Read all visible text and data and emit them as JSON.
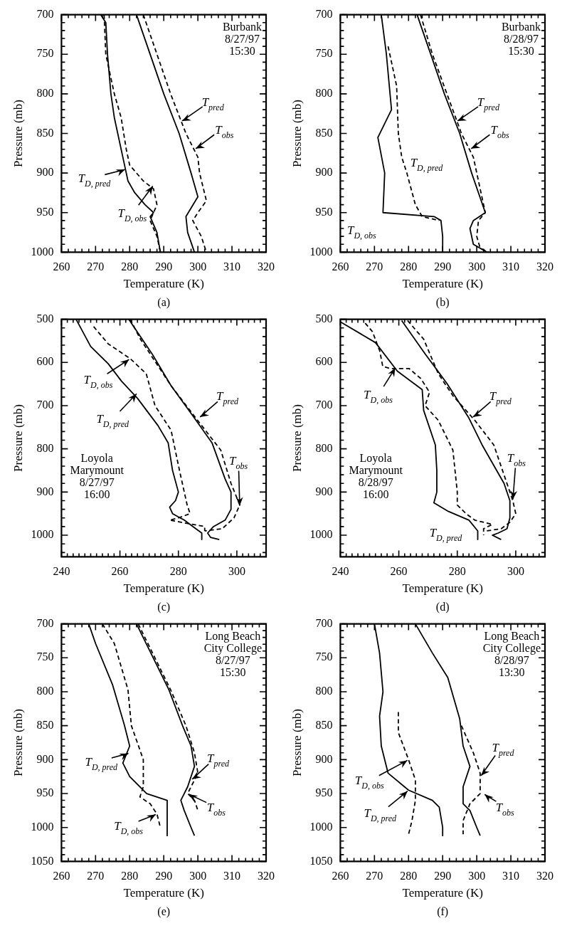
{
  "chart_data": [
    {
      "type": "line",
      "title": "Burbank\n8/27/97\n15:30",
      "xlabel": "Temperature (K)",
      "ylabel": "Pressure (mb)",
      "marker": "none",
      "xlim": [
        260,
        320
      ],
      "ylim": [
        1000,
        700
      ],
      "xticks": [
        260,
        {
          "value": 262,
          "label": null
        },
        {
          "value": 264,
          "label": null
        },
        {
          "value": 266,
          "label": null
        },
        {
          "value": 268,
          "label": null
        },
        270,
        {
          "value": 272,
          "label": null
        },
        {
          "value": 274,
          "label": null
        },
        {
          "value": 276,
          "label": null
        },
        {
          "value": 278,
          "label": null
        },
        280,
        {
          "value": 282,
          "label": null
        },
        {
          "value": 284,
          "label": null
        },
        {
          "value": 286,
          "label": null
        },
        {
          "value": 288,
          "label": null
        },
        290,
        {
          "value": 292,
          "label": null
        },
        {
          "value": 294,
          "label": null
        },
        {
          "value": 296,
          "label": null
        },
        {
          "value": 298,
          "label": null
        },
        300,
        {
          "value": 302,
          "label": null
        },
        {
          "value": 304,
          "label": null
        },
        {
          "value": 306,
          "label": null
        },
        {
          "value": 308,
          "label": null
        },
        310,
        {
          "value": 312,
          "label": null
        },
        {
          "value": 314,
          "label": null
        },
        {
          "value": 316,
          "label": null
        },
        {
          "value": 318,
          "label": null
        },
        320
      ],
      "yticks": [
        700,
        {
          "value": 710,
          "label": null
        },
        {
          "value": 720,
          "label": null
        },
        {
          "value": 730,
          "label": null
        },
        {
          "value": 740,
          "label": null
        },
        750,
        {
          "value": 760,
          "label": null
        },
        {
          "value": 770,
          "label": null
        },
        {
          "value": 780,
          "label": null
        },
        {
          "value": 790,
          "label": null
        },
        800,
        {
          "value": 810,
          "label": null
        },
        {
          "value": 820,
          "label": null
        },
        {
          "value": 830,
          "label": null
        },
        {
          "value": 840,
          "label": null
        },
        850,
        {
          "value": 860,
          "label": null
        },
        {
          "value": 870,
          "label": null
        },
        {
          "value": 880,
          "label": null
        },
        {
          "value": 890,
          "label": null
        },
        900,
        {
          "value": 910,
          "label": null
        },
        {
          "value": 920,
          "label": null
        },
        {
          "value": 930,
          "label": null
        },
        {
          "value": 940,
          "label": null
        },
        950,
        {
          "value": 960,
          "label": null
        },
        {
          "value": 970,
          "label": null
        },
        {
          "value": 980,
          "label": null
        },
        {
          "value": 990,
          "label": null
        },
        1000
      ],
      "series": [
        {
          "color": "#000000",
          "line_style": "solid",
          "x": [
            282,
            290,
            294.5,
            298,
            300,
            296.5,
            297,
            299
          ],
          "values": [
            700,
            800,
            850,
            900,
            930,
            955,
            975,
            1000
          ]
        },
        {
          "color": "#000000",
          "line_style": "dashed",
          "x": [
            284,
            292,
            296.5,
            300,
            300.5,
            302.5,
            300,
            298.5,
            301,
            302.5
          ],
          "values": [
            700,
            800,
            850,
            880,
            900,
            935,
            950,
            960,
            980,
            1000
          ]
        },
        {
          "color": "#000000",
          "line_style": "solid",
          "x": [
            271.5,
            273,
            273.5,
            274.5,
            275.5,
            278,
            279,
            279.5,
            281.5,
            284.5,
            287,
            286,
            288,
            289
          ],
          "values": [
            700,
            710,
            750,
            800,
            830,
            880,
            900,
            910,
            925,
            940,
            950,
            955,
            975,
            1000
          ]
        },
        {
          "color": "#000000",
          "line_style": "dashed",
          "x": [
            272.5,
            273,
            274,
            275.5,
            277.5,
            279,
            280,
            284,
            287,
            288,
            287,
            286,
            288,
            289
          ],
          "values": [
            700,
            750,
            770,
            800,
            830,
            870,
            890,
            910,
            920,
            940,
            950,
            960,
            980,
            1000
          ]
        }
      ],
      "annotations": [
        {
          "text": "T$_{pred}$",
          "x": 295,
          "y": 835
        },
        {
          "text": "T$_{obs}$",
          "x": 299,
          "y": 870
        },
        {
          "text": "T$_{D, pred}$",
          "x": 279,
          "y": 895
        },
        {
          "text": "T$_{D, obs}$",
          "x": 287,
          "y": 915
        },
        "(a)"
      ]
    },
    {
      "type": "line",
      "title": "Burbank\n8/28/97\n15:30",
      "xlabel": "Temperature (K)",
      "ylabel": "Pressure (mb)",
      "marker": "none",
      "xlim": [
        260,
        320
      ],
      "ylim": [
        1000,
        700
      ],
      "xticks": [
        260,
        {
          "value": 262,
          "label": null
        },
        {
          "value": 264,
          "label": null
        },
        {
          "value": 266,
          "label": null
        },
        {
          "value": 268,
          "label": null
        },
        270,
        {
          "value": 272,
          "label": null
        },
        {
          "value": 274,
          "label": null
        },
        {
          "value": 276,
          "label": null
        },
        {
          "value": 278,
          "label": null
        },
        280,
        {
          "value": 282,
          "label": null
        },
        {
          "value": 284,
          "label": null
        },
        {
          "value": 286,
          "label": null
        },
        {
          "value": 288,
          "label": null
        },
        290,
        {
          "value": 292,
          "label": null
        },
        {
          "value": 294,
          "label": null
        },
        {
          "value": 296,
          "label": null
        },
        {
          "value": 298,
          "label": null
        },
        300,
        {
          "value": 302,
          "label": null
        },
        {
          "value": 304,
          "label": null
        },
        {
          "value": 306,
          "label": null
        },
        {
          "value": 308,
          "label": null
        },
        310,
        {
          "value": 312,
          "label": null
        },
        {
          "value": 314,
          "label": null
        },
        {
          "value": 316,
          "label": null
        },
        {
          "value": 318,
          "label": null
        },
        320
      ],
      "yticks": [
        700,
        {
          "value": 710,
          "label": null
        },
        {
          "value": 720,
          "label": null
        },
        {
          "value": 730,
          "label": null
        },
        {
          "value": 740,
          "label": null
        },
        750,
        {
          "value": 760,
          "label": null
        },
        {
          "value": 770,
          "label": null
        },
        {
          "value": 780,
          "label": null
        },
        {
          "value": 790,
          "label": null
        },
        800,
        {
          "value": 810,
          "label": null
        },
        {
          "value": 820,
          "label": null
        },
        {
          "value": 830,
          "label": null
        },
        {
          "value": 840,
          "label": null
        },
        850,
        {
          "value": 860,
          "label": null
        },
        {
          "value": 870,
          "label": null
        },
        {
          "value": 880,
          "label": null
        },
        {
          "value": 890,
          "label": null
        },
        900,
        {
          "value": 910,
          "label": null
        },
        {
          "value": 920,
          "label": null
        },
        {
          "value": 930,
          "label": null
        },
        {
          "value": 940,
          "label": null
        },
        950,
        {
          "value": 960,
          "label": null
        },
        {
          "value": 970,
          "label": null
        },
        {
          "value": 980,
          "label": null
        },
        {
          "value": 990,
          "label": null
        },
        1000
      ],
      "series": [
        {
          "color": "#000000",
          "line_style": "solid",
          "x": [
            282.5,
            290.5,
            295,
            298.5,
            302.5,
            299,
            298,
            299,
            303
          ],
          "values": [
            700,
            800,
            850,
            900,
            950,
            960,
            970,
            990,
            1000
          ]
        },
        {
          "color": "#000000",
          "line_style": "dashed",
          "x": [
            283.5,
            287,
            295.5,
            299,
            302.5,
            300.5,
            300,
            301,
            303.5
          ],
          "values": [
            700,
            750,
            850,
            880,
            950,
            960,
            980,
            995,
            1000
          ]
        },
        {
          "color": "#000000",
          "line_style": "solid",
          "x": [
            272,
            273.5,
            275,
            271,
            273,
            272.5,
            287.5,
            289.5,
            290,
            290
          ],
          "values": [
            700,
            750,
            820,
            855,
            900,
            950,
            955,
            960,
            980,
            1000
          ]
        },
        {
          "color": "#000000",
          "line_style": "dashed",
          "x": [
            274,
            276.5,
            277,
            278,
            279.5,
            282,
            284,
            289
          ],
          "values": [
            740,
            790,
            850,
            880,
            900,
            940,
            955,
            960
          ]
        }
      ],
      "annotations": [
        {
          "text": "T$_{pred}$",
          "x": 294,
          "y": 835
        },
        {
          "text": "T$_{obs}$",
          "x": 298,
          "y": 870
        },
        {
          "text": "T$_{D, pred}$",
          "x": 279,
          "y": 885
        },
        {
          "text": "T$_{D, obs}$",
          "x": 272.5,
          "y": 950
        },
        "(b)"
      ]
    },
    {
      "type": "line",
      "title": "Loyola\nMarymount\n8/27/97\n16:00",
      "xlabel": "Temperature (K)",
      "ylabel": "Pressure (mb)",
      "marker": "none",
      "xlim": [
        240,
        310
      ],
      "ylim": [
        1050,
        500
      ],
      "xticks": [
        240,
        {
          "value": 242,
          "label": null
        },
        {
          "value": 244,
          "label": null
        },
        {
          "value": 246,
          "label": null
        },
        {
          "value": 248,
          "label": null
        },
        {
          "value": 250,
          "label": null
        },
        {
          "value": 252,
          "label": null
        },
        {
          "value": 254,
          "label": null
        },
        {
          "value": 256,
          "label": null
        },
        {
          "value": 258,
          "label": null
        },
        260,
        {
          "value": 262,
          "label": null
        },
        {
          "value": 264,
          "label": null
        },
        {
          "value": 266,
          "label": null
        },
        {
          "value": 268,
          "label": null
        },
        {
          "value": 270,
          "label": null
        },
        {
          "value": 272,
          "label": null
        },
        {
          "value": 274,
          "label": null
        },
        {
          "value": 276,
          "label": null
        },
        {
          "value": 278,
          "label": null
        },
        280,
        {
          "value": 282,
          "label": null
        },
        {
          "value": 284,
          "label": null
        },
        {
          "value": 286,
          "label": null
        },
        {
          "value": 288,
          "label": null
        },
        {
          "value": 290,
          "label": null
        },
        {
          "value": 292,
          "label": null
        },
        {
          "value": 294,
          "label": null
        },
        {
          "value": 296,
          "label": null
        },
        {
          "value": 298,
          "label": null
        },
        300,
        {
          "value": 302,
          "label": null
        },
        {
          "value": 304,
          "label": null
        },
        {
          "value": 306,
          "label": null
        },
        {
          "value": 308,
          "label": null
        }
      ],
      "yticks": [
        500,
        {
          "value": 520,
          "label": null
        },
        {
          "value": 540,
          "label": null
        },
        {
          "value": 560,
          "label": null
        },
        {
          "value": 580,
          "label": null
        },
        600,
        {
          "value": 620,
          "label": null
        },
        {
          "value": 640,
          "label": null
        },
        {
          "value": 660,
          "label": null
        },
        {
          "value": 680,
          "label": null
        },
        700,
        {
          "value": 720,
          "label": null
        },
        {
          "value": 740,
          "label": null
        },
        {
          "value": 760,
          "label": null
        },
        {
          "value": 780,
          "label": null
        },
        800,
        {
          "value": 820,
          "label": null
        },
        {
          "value": 840,
          "label": null
        },
        {
          "value": 860,
          "label": null
        },
        {
          "value": 880,
          "label": null
        },
        900,
        {
          "value": 920,
          "label": null
        },
        {
          "value": 940,
          "label": null
        },
        {
          "value": 960,
          "label": null
        },
        {
          "value": 980,
          "label": null
        },
        1000,
        {
          "value": 1020,
          "label": null
        },
        {
          "value": 1040,
          "label": null
        }
      ],
      "series": [
        {
          "color": "#000000",
          "line_style": "solid",
          "x": [
            263,
            271,
            277.5,
            285.5,
            291.5,
            296,
            298,
            298,
            296,
            292,
            290,
            291,
            294
          ],
          "values": [
            500,
            580,
            654,
            729,
            786,
            870,
            900,
            940,
            965,
            980,
            995,
            1005,
            1010
          ]
        },
        {
          "color": "#000000",
          "line_style": "dashed",
          "x": [
            263.5,
            267,
            277.5,
            286,
            294.5,
            298,
            301,
            299,
            295,
            289
          ],
          "values": [
            500,
            546,
            654,
            729,
            803,
            880,
            930,
            960,
            985,
            990
          ]
        },
        {
          "color": "#000000",
          "line_style": "solid",
          "x": [
            245,
            250,
            256,
            260.5,
            266,
            273,
            276.5,
            278,
            280,
            279,
            277,
            278,
            282,
            285,
            288,
            288
          ],
          "values": [
            500,
            563,
            603,
            643,
            683,
            746,
            786,
            850,
            900,
            920,
            935,
            950,
            965,
            980,
            995,
            1010
          ]
        },
        {
          "color": "#000000",
          "line_style": "dashed",
          "x": [
            251,
            256,
            263.5,
            269,
            272,
            277.5,
            280.5,
            283,
            284,
            280,
            277,
            289,
            289
          ],
          "values": [
            517,
            557,
            591,
            626,
            700,
            757,
            854,
            930,
            950,
            960,
            965,
            980,
            990
          ]
        }
      ],
      "annotations": [
        {
          "text": "T$_{D, obs}$",
          "x": 263.5,
          "y": 591
        },
        {
          "text": "T$_{D, pred}$",
          "x": 266,
          "y": 670
        },
        {
          "text": "T$_{pred}$",
          "x": 287,
          "y": 728
        },
        {
          "text": "T$_{obs}$",
          "x": 301,
          "y": 935
        },
        "(c)"
      ]
    },
    {
      "type": "line",
      "title": "Loyola\nMarymount\n8/28/97\n16:00",
      "xlabel": "Temperature (K)",
      "ylabel": "Pressure (mb)",
      "marker": "none",
      "xlim": [
        240,
        310
      ],
      "ylim": [
        1050,
        500
      ],
      "xticks": [
        240,
        {
          "value": 242,
          "label": null
        },
        {
          "value": 244,
          "label": null
        },
        {
          "value": 246,
          "label": null
        },
        {
          "value": 248,
          "label": null
        },
        {
          "value": 250,
          "label": null
        },
        {
          "value": 252,
          "label": null
        },
        {
          "value": 254,
          "label": null
        },
        {
          "value": 256,
          "label": null
        },
        {
          "value": 258,
          "label": null
        },
        260,
        {
          "value": 262,
          "label": null
        },
        {
          "value": 264,
          "label": null
        },
        {
          "value": 266,
          "label": null
        },
        {
          "value": 268,
          "label": null
        },
        {
          "value": 270,
          "label": null
        },
        {
          "value": 272,
          "label": null
        },
        {
          "value": 274,
          "label": null
        },
        {
          "value": 276,
          "label": null
        },
        {
          "value": 278,
          "label": null
        },
        280,
        {
          "value": 282,
          "label": null
        },
        {
          "value": 284,
          "label": null
        },
        {
          "value": 286,
          "label": null
        },
        {
          "value": 288,
          "label": null
        },
        {
          "value": 290,
          "label": null
        },
        {
          "value": 292,
          "label": null
        },
        {
          "value": 294,
          "label": null
        },
        {
          "value": 296,
          "label": null
        },
        {
          "value": 298,
          "label": null
        },
        300,
        {
          "value": 302,
          "label": null
        },
        {
          "value": 304,
          "label": null
        },
        {
          "value": 306,
          "label": null
        },
        {
          "value": 308,
          "label": null
        }
      ],
      "yticks": [
        500,
        {
          "value": 520,
          "label": null
        },
        {
          "value": 540,
          "label": null
        },
        {
          "value": 560,
          "label": null
        },
        {
          "value": 580,
          "label": null
        },
        600,
        {
          "value": 620,
          "label": null
        },
        {
          "value": 640,
          "label": null
        },
        {
          "value": 660,
          "label": null
        },
        {
          "value": 680,
          "label": null
        },
        700,
        {
          "value": 720,
          "label": null
        },
        {
          "value": 740,
          "label": null
        },
        {
          "value": 760,
          "label": null
        },
        {
          "value": 780,
          "label": null
        },
        800,
        {
          "value": 820,
          "label": null
        },
        {
          "value": 840,
          "label": null
        },
        {
          "value": 860,
          "label": null
        },
        {
          "value": 880,
          "label": null
        },
        900,
        {
          "value": 920,
          "label": null
        },
        {
          "value": 940,
          "label": null
        },
        {
          "value": 960,
          "label": null
        },
        {
          "value": 980,
          "label": null
        },
        1000,
        {
          "value": 1020,
          "label": null
        },
        {
          "value": 1040,
          "label": null
        }
      ],
      "series": [
        {
          "color": "#000000",
          "line_style": "solid",
          "x": [
            261,
            269,
            276.5,
            284,
            288.5,
            296,
            298,
            298,
            297,
            294,
            292,
            295
          ],
          "values": [
            503,
            580,
            649,
            729,
            791,
            880,
            920,
            960,
            985,
            995,
            1000,
            1010
          ]
        },
        {
          "color": "#000000",
          "line_style": "dashed",
          "x": [
            263,
            268.5,
            273.5,
            278.5,
            286,
            292.5,
            299,
            300,
            298,
            295,
            290
          ],
          "values": [
            503,
            546,
            626,
            677,
            734,
            791,
            920,
            950,
            970,
            985,
            990
          ]
        },
        {
          "color": "#000000",
          "line_style": "solid",
          "x": [
            240,
            252,
            259.5,
            268,
            268.5,
            272.5,
            273,
            273,
            272,
            277,
            284,
            287,
            287
          ],
          "values": [
            506,
            554,
            620,
            663,
            711,
            791,
            850,
            900,
            925,
            945,
            965,
            990,
            1010
          ]
        },
        {
          "color": "#000000",
          "line_style": "dashed",
          "x": [
            248.5,
            251,
            253.5,
            254.5,
            257,
            263.5,
            267.5,
            270.5,
            269,
            273.5,
            278.5,
            280,
            280,
            283,
            286,
            292,
            289,
            289
          ],
          "values": [
            509,
            529,
            574,
            609,
            614,
            614,
            637,
            669,
            700,
            734,
            803,
            900,
            930,
            950,
            965,
            975,
            985,
            1000
          ]
        }
      ],
      "annotations": [
        {
          "text": "T$_{D, obs}$",
          "x": 259,
          "y": 610
        },
        {
          "text": "T$_{pred}$",
          "x": 285,
          "y": 728
        },
        {
          "text": "T$_{obs}$",
          "x": 299,
          "y": 920
        },
        {
          "text": "T$_{D, pred}$",
          "x": 287,
          "y": 990
        },
        "(d)"
      ]
    },
    {
      "type": "line",
      "title": "Long Beach\nCity College\n8/27/97\n15:30",
      "xlabel": "Temperature (K)",
      "ylabel": "Pressure (mb)",
      "marker": "none",
      "xlim": [
        260,
        320
      ],
      "ylim": [
        1050,
        700
      ],
      "xticks": [
        260,
        {
          "value": 262,
          "label": null
        },
        {
          "value": 264,
          "label": null
        },
        {
          "value": 266,
          "label": null
        },
        {
          "value": 268,
          "label": null
        },
        270,
        {
          "value": 272,
          "label": null
        },
        {
          "value": 274,
          "label": null
        },
        {
          "value": 276,
          "label": null
        },
        {
          "value": 278,
          "label": null
        },
        280,
        {
          "value": 282,
          "label": null
        },
        {
          "value": 284,
          "label": null
        },
        {
          "value": 286,
          "label": null
        },
        {
          "value": 288,
          "label": null
        },
        290,
        {
          "value": 292,
          "label": null
        },
        {
          "value": 294,
          "label": null
        },
        {
          "value": 296,
          "label": null
        },
        {
          "value": 298,
          "label": null
        },
        300,
        {
          "value": 302,
          "label": null
        },
        {
          "value": 304,
          "label": null
        },
        {
          "value": 306,
          "label": null
        },
        {
          "value": 308,
          "label": null
        },
        310,
        {
          "value": 312,
          "label": null
        },
        {
          "value": 314,
          "label": null
        },
        {
          "value": 316,
          "label": null
        },
        {
          "value": 318,
          "label": null
        },
        320
      ],
      "yticks": [
        700,
        {
          "value": 710,
          "label": null
        },
        {
          "value": 720,
          "label": null
        },
        {
          "value": 730,
          "label": null
        },
        {
          "value": 740,
          "label": null
        },
        750,
        {
          "value": 760,
          "label": null
        },
        {
          "value": 770,
          "label": null
        },
        {
          "value": 780,
          "label": null
        },
        {
          "value": 790,
          "label": null
        },
        800,
        {
          "value": 810,
          "label": null
        },
        {
          "value": 820,
          "label": null
        },
        {
          "value": 830,
          "label": null
        },
        {
          "value": 840,
          "label": null
        },
        850,
        {
          "value": 860,
          "label": null
        },
        {
          "value": 870,
          "label": null
        },
        {
          "value": 880,
          "label": null
        },
        {
          "value": 890,
          "label": null
        },
        900,
        {
          "value": 910,
          "label": null
        },
        {
          "value": 920,
          "label": null
        },
        {
          "value": 930,
          "label": null
        },
        {
          "value": 940,
          "label": null
        },
        950,
        {
          "value": 960,
          "label": null
        },
        {
          "value": 970,
          "label": null
        },
        {
          "value": 980,
          "label": null
        },
        {
          "value": 990,
          "label": null
        },
        1000,
        {
          "value": 1010,
          "label": null
        },
        {
          "value": 1020,
          "label": null
        },
        {
          "value": 1030,
          "label": null
        },
        {
          "value": 1040,
          "label": null
        },
        1050
      ],
      "series": [
        {
          "color": "#000000",
          "line_style": "solid",
          "x": [
            282,
            291.5,
            295.5,
            298,
            299,
            297,
            295,
            296,
            298,
            299
          ],
          "values": [
            700,
            797,
            850,
            880,
            910,
            940,
            960,
            975,
            1000,
            1012
          ]
        },
        {
          "color": "#000000",
          "line_style": "dashed",
          "x": [
            282.5,
            292,
            296.5,
            299,
            300,
            298,
            297,
            299,
            300
          ],
          "values": [
            700,
            797,
            850,
            890,
            920,
            940,
            950,
            960,
            975
          ]
        },
        {
          "color": "#000000",
          "line_style": "solid",
          "x": [
            268,
            270,
            275,
            278.5,
            280,
            278,
            280,
            285,
            291,
            291
          ],
          "values": [
            700,
            729,
            790,
            850,
            880,
            905,
            925,
            950,
            960,
            1012
          ]
        },
        {
          "color": "#000000",
          "line_style": "dashed",
          "x": [
            272,
            275.5,
            279.5,
            280.5,
            284,
            284,
            283,
            286,
            288,
            289
          ],
          "values": [
            700,
            729,
            797,
            850,
            900,
            940,
            955,
            965,
            980,
            1000
          ]
        }
      ],
      "annotations": [
        {
          "text": "T$_{D, pred}$",
          "x": 280,
          "y": 890
        },
        {
          "text": "T$_{pred}$",
          "x": 298,
          "y": 930
        },
        {
          "text": "T$_{obs}$",
          "x": 297,
          "y": 950
        },
        {
          "text": "T$_{D, obs}$",
          "x": 288,
          "y": 980
        },
        "(e)"
      ]
    },
    {
      "type": "line",
      "title": "Long Beach\nCity College\n8/28/97\n13:30",
      "xlabel": "Temperature (K)",
      "ylabel": "Pressure (mb)",
      "marker": "none",
      "xlim": [
        260,
        320
      ],
      "ylim": [
        1050,
        700
      ],
      "xticks": [
        260,
        {
          "value": 262,
          "label": null
        },
        {
          "value": 264,
          "label": null
        },
        {
          "value": 266,
          "label": null
        },
        {
          "value": 268,
          "label": null
        },
        270,
        {
          "value": 272,
          "label": null
        },
        {
          "value": 274,
          "label": null
        },
        {
          "value": 276,
          "label": null
        },
        {
          "value": 278,
          "label": null
        },
        280,
        {
          "value": 282,
          "label": null
        },
        {
          "value": 284,
          "label": null
        },
        {
          "value": 286,
          "label": null
        },
        {
          "value": 288,
          "label": null
        },
        290,
        {
          "value": 292,
          "label": null
        },
        {
          "value": 294,
          "label": null
        },
        {
          "value": 296,
          "label": null
        },
        {
          "value": 298,
          "label": null
        },
        300,
        {
          "value": 302,
          "label": null
        },
        {
          "value": 304,
          "label": null
        },
        {
          "value": 306,
          "label": null
        },
        {
          "value": 308,
          "label": null
        },
        310,
        {
          "value": 312,
          "label": null
        },
        {
          "value": 314,
          "label": null
        },
        {
          "value": 316,
          "label": null
        },
        {
          "value": 318,
          "label": null
        },
        320
      ],
      "yticks": [
        700,
        {
          "value": 710,
          "label": null
        },
        {
          "value": 720,
          "label": null
        },
        {
          "value": 730,
          "label": null
        },
        {
          "value": 740,
          "label": null
        },
        750,
        {
          "value": 760,
          "label": null
        },
        {
          "value": 770,
          "label": null
        },
        {
          "value": 780,
          "label": null
        },
        {
          "value": 790,
          "label": null
        },
        800,
        {
          "value": 810,
          "label": null
        },
        {
          "value": 820,
          "label": null
        },
        {
          "value": 830,
          "label": null
        },
        {
          "value": 840,
          "label": null
        },
        850,
        {
          "value": 860,
          "label": null
        },
        {
          "value": 870,
          "label": null
        },
        {
          "value": 880,
          "label": null
        },
        {
          "value": 890,
          "label": null
        },
        900,
        {
          "value": 910,
          "label": null
        },
        {
          "value": 920,
          "label": null
        },
        {
          "value": 930,
          "label": null
        },
        {
          "value": 940,
          "label": null
        },
        950,
        {
          "value": 960,
          "label": null
        },
        {
          "value": 970,
          "label": null
        },
        {
          "value": 980,
          "label": null
        },
        {
          "value": 990,
          "label": null
        },
        1000,
        {
          "value": 1010,
          "label": null
        },
        {
          "value": 1020,
          "label": null
        },
        {
          "value": 1030,
          "label": null
        },
        {
          "value": 1040,
          "label": null
        },
        1050
      ],
      "series": [
        {
          "color": "#000000",
          "line_style": "solid",
          "x": [
            282,
            287,
            291.5,
            295,
            296,
            298,
            296,
            296,
            298,
            300,
            301
          ],
          "values": [
            700,
            743,
            779,
            840,
            880,
            910,
            940,
            965,
            975,
            1000,
            1012
          ]
        },
        {
          "color": "#000000",
          "line_style": "dashed",
          "x": [
            295.5,
            299,
            301,
            301,
            298,
            296,
            296
          ],
          "values": [
            850,
            890,
            920,
            950,
            965,
            990,
            1010
          ]
        },
        {
          "color": "#000000",
          "line_style": "solid",
          "x": [
            270,
            271.5,
            272.5,
            271.5,
            272,
            274,
            280,
            287,
            289,
            290,
            290
          ],
          "values": [
            700,
            743,
            800,
            836,
            880,
            920,
            945,
            960,
            970,
            1000,
            1012
          ]
        },
        {
          "color": "#000000",
          "line_style": "dashed",
          "x": [
            277,
            277,
            280,
            282,
            282,
            281,
            280
          ],
          "values": [
            830,
            860,
            900,
            930,
            960,
            990,
            1010
          ]
        }
      ],
      "annotations": [
        {
          "text": "T$_{D, obs}$",
          "x": 280,
          "y": 900
        },
        {
          "text": "T$_{D, pred}$",
          "x": 280,
          "y": 945
        },
        {
          "text": "T$_{pred}$",
          "x": 301,
          "y": 925
        },
        {
          "text": "T$_{obs}$",
          "x": 302,
          "y": 950
        },
        "(f)"
      ]
    }
  ]
}
